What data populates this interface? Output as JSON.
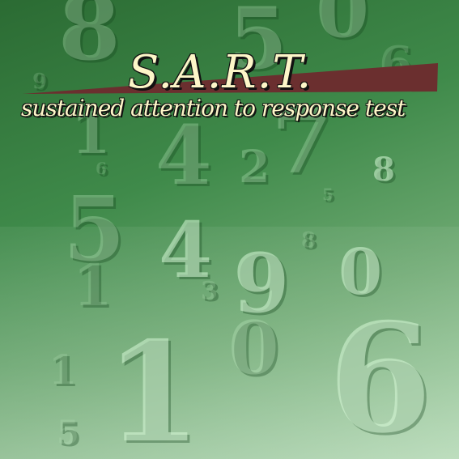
{
  "title": "S.A.R.T.",
  "subtitle": "sustained attention to response test",
  "colors": {
    "background_dark": "#2b6b33",
    "background_light": "#a9d3aa",
    "title_text": "#fdf6c8",
    "band": "#6b2f2f"
  },
  "background_digits": [
    "8",
    "5",
    "0",
    "6",
    "9",
    "7",
    "4",
    "1",
    "2",
    "6",
    "8",
    "5",
    "5",
    "4",
    "8",
    "9",
    "0",
    "1",
    "0",
    "6",
    "3",
    "1",
    "1",
    "5"
  ]
}
